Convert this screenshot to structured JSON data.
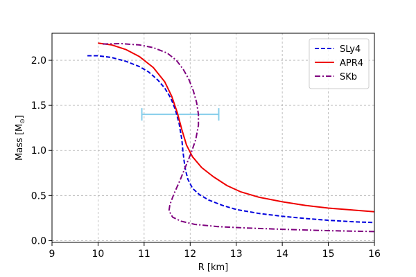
{
  "chart_data": {
    "type": "line",
    "xlabel": "R [km]",
    "ylabel": "Mass [M",
    "ylabel_sub": "⊙",
    "ylabel_end": "]",
    "xlim": [
      9,
      16
    ],
    "ylim": [
      -0.02,
      2.3
    ],
    "x_ticks": [
      9,
      10,
      11,
      12,
      13,
      14,
      15,
      16
    ],
    "y_ticks": [
      0.0,
      0.5,
      1.0,
      1.5,
      2.0
    ],
    "x_tick_labels": [
      "9",
      "10",
      "11",
      "12",
      "13",
      "14",
      "15",
      "16"
    ],
    "y_tick_labels": [
      "0.0",
      "0.5",
      "1.0",
      "1.5",
      "2.0"
    ],
    "grid": true,
    "legend_position": "top-right",
    "series": [
      {
        "name": "SLy4",
        "color": "#0000dd",
        "style": "dashed",
        "points": [
          [
            9.77,
            2.05
          ],
          [
            10.0,
            2.05
          ],
          [
            10.3,
            2.03
          ],
          [
            10.6,
            1.99
          ],
          [
            10.9,
            1.93
          ],
          [
            11.1,
            1.87
          ],
          [
            11.3,
            1.78
          ],
          [
            11.45,
            1.69
          ],
          [
            11.58,
            1.58
          ],
          [
            11.68,
            1.45
          ],
          [
            11.76,
            1.3
          ],
          [
            11.82,
            1.12
          ],
          [
            11.84,
            1.0
          ],
          [
            11.87,
            0.88
          ],
          [
            11.9,
            0.78
          ],
          [
            11.95,
            0.68
          ],
          [
            12.05,
            0.58
          ],
          [
            12.2,
            0.51
          ],
          [
            12.4,
            0.45
          ],
          [
            12.7,
            0.39
          ],
          [
            13.0,
            0.345
          ],
          [
            13.5,
            0.3
          ],
          [
            14.0,
            0.27
          ],
          [
            14.5,
            0.245
          ],
          [
            15.0,
            0.225
          ],
          [
            15.5,
            0.21
          ],
          [
            16.0,
            0.2
          ]
        ]
      },
      {
        "name": "APR4",
        "color": "#ee0000",
        "style": "solid",
        "points": [
          [
            10.0,
            2.19
          ],
          [
            10.3,
            2.17
          ],
          [
            10.6,
            2.12
          ],
          [
            10.9,
            2.04
          ],
          [
            11.2,
            1.92
          ],
          [
            11.45,
            1.76
          ],
          [
            11.6,
            1.6
          ],
          [
            11.72,
            1.42
          ],
          [
            11.82,
            1.23
          ],
          [
            11.92,
            1.06
          ],
          [
            12.05,
            0.93
          ],
          [
            12.25,
            0.81
          ],
          [
            12.5,
            0.71
          ],
          [
            12.8,
            0.61
          ],
          [
            13.1,
            0.54
          ],
          [
            13.5,
            0.48
          ],
          [
            14.0,
            0.43
          ],
          [
            14.5,
            0.39
          ],
          [
            15.0,
            0.36
          ],
          [
            15.5,
            0.34
          ],
          [
            16.0,
            0.32
          ]
        ]
      },
      {
        "name": "SKb",
        "color": "#7f007f",
        "style": "dashdot",
        "points": [
          [
            10.1,
            2.18
          ],
          [
            10.5,
            2.185
          ],
          [
            10.9,
            2.17
          ],
          [
            11.2,
            2.14
          ],
          [
            11.5,
            2.08
          ],
          [
            11.7,
            2.0
          ],
          [
            11.85,
            1.9
          ],
          [
            11.97,
            1.79
          ],
          [
            12.07,
            1.66
          ],
          [
            12.14,
            1.53
          ],
          [
            12.18,
            1.4
          ],
          [
            12.18,
            1.28
          ],
          [
            12.12,
            1.12
          ],
          [
            12.02,
            0.97
          ],
          [
            11.9,
            0.82
          ],
          [
            11.78,
            0.67
          ],
          [
            11.65,
            0.52
          ],
          [
            11.56,
            0.4
          ],
          [
            11.54,
            0.33
          ],
          [
            11.62,
            0.26
          ],
          [
            11.8,
            0.215
          ],
          [
            12.1,
            0.18
          ],
          [
            12.6,
            0.155
          ],
          [
            13.2,
            0.14
          ],
          [
            14.0,
            0.125
          ],
          [
            15.0,
            0.11
          ],
          [
            16.0,
            0.1
          ]
        ]
      }
    ],
    "errorbar": {
      "color": "#87ceeb",
      "y": 1.4,
      "x_min": 10.95,
      "x_max": 12.62
    }
  }
}
